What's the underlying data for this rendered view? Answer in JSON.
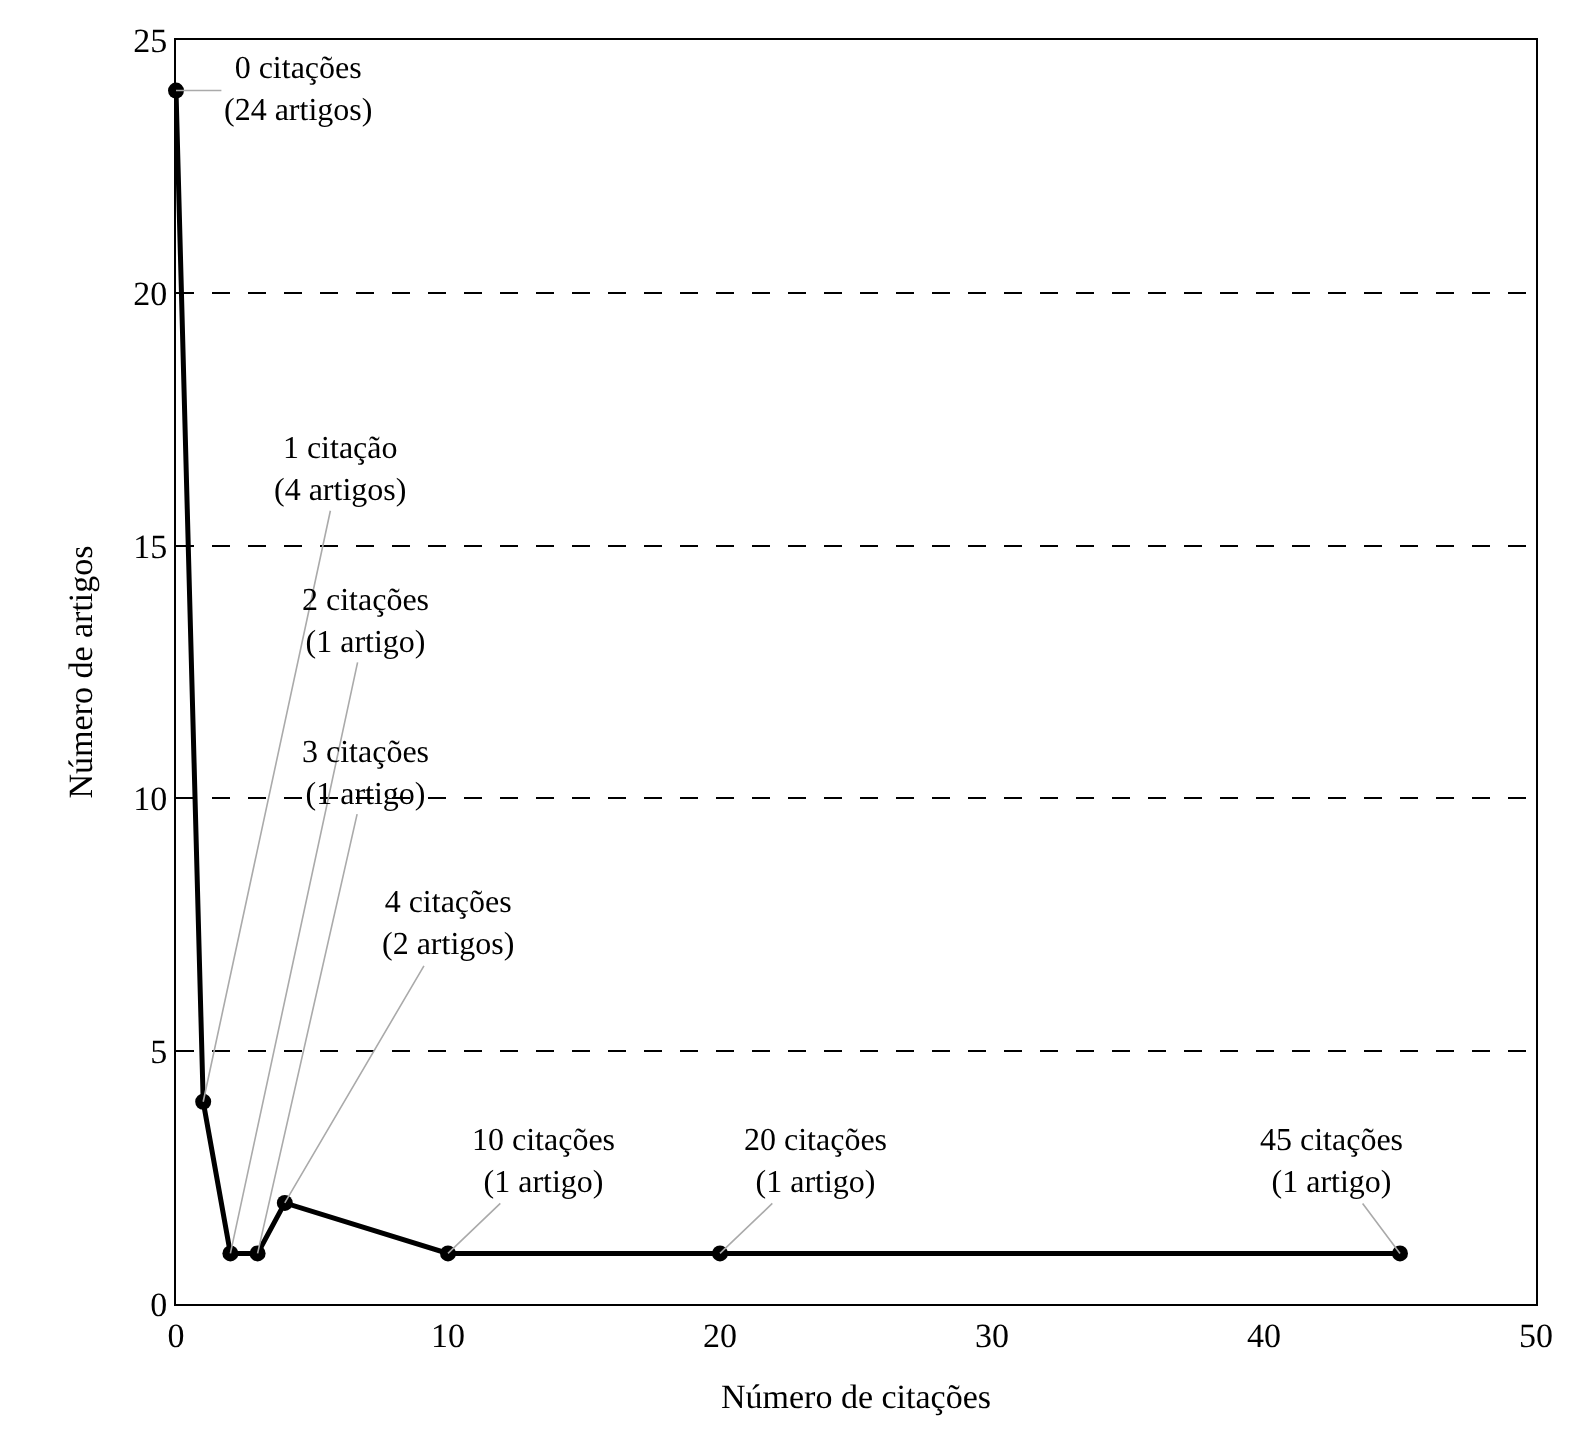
{
  "chart_data": {
    "type": "line",
    "xlabel": "Número de citações",
    "ylabel": "Número de artigos",
    "x": [
      0,
      1,
      2,
      3,
      4,
      10,
      20,
      45
    ],
    "series": [
      {
        "color": "#000000",
        "values": [
          24,
          4,
          1,
          1,
          2,
          1,
          1,
          1
        ]
      }
    ],
    "xlim": [
      0,
      50
    ],
    "xticks": [
      0,
      10,
      20,
      30,
      40,
      50
    ],
    "ylim": [
      0,
      25
    ],
    "yticks": [
      0,
      5,
      10,
      15,
      20,
      25
    ],
    "grid": "y",
    "legend": false,
    "marker": "circle",
    "line_style": "solid",
    "annotations": [
      {
        "text": "0 citações\n(24 artigos)",
        "x": 0,
        "y": 24
      },
      {
        "text": "1 citação\n(4 artigos)",
        "x": 1,
        "y": 4
      },
      {
        "text": "2 citações\n(1 artigo)",
        "x": 2,
        "y": 1
      },
      {
        "text": "3 citações\n(1 artigo)",
        "x": 3,
        "y": 1
      },
      {
        "text": "4 citações\n(2 artigos)",
        "x": 4,
        "y": 2
      },
      {
        "text": "10 citações\n(1 artigo)",
        "x": 10,
        "y": 1
      },
      {
        "text": "20 citações\n(1 artigo)",
        "x": 20,
        "y": 1
      },
      {
        "text": "45 citações\n(1 artigo)",
        "x": 45,
        "y": 1
      }
    ]
  }
}
